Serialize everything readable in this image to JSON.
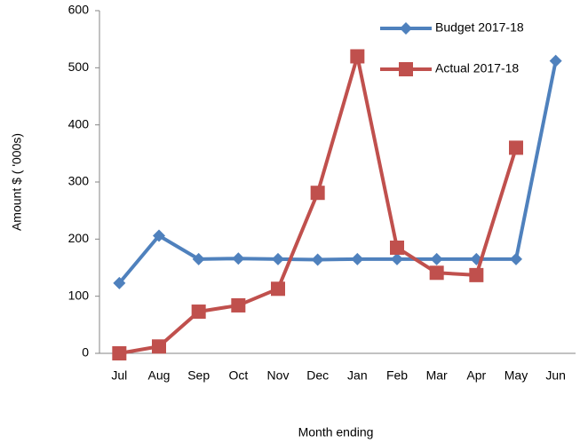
{
  "chart_data": {
    "type": "line",
    "x_label": "Month ending",
    "y_label": "Amount $ ( '000s)",
    "categories": [
      "Jul",
      "Aug",
      "Sep",
      "Oct",
      "Nov",
      "Dec",
      "Jan",
      "Feb",
      "Mar",
      "Apr",
      "May",
      "Jun"
    ],
    "series": [
      {
        "name": "Budget 2017-18",
        "color": "#4f81bd",
        "marker": "diamond",
        "values": [
          123,
          206,
          165,
          166,
          165,
          164,
          165,
          165,
          165,
          165,
          165,
          512
        ]
      },
      {
        "name": "Actual 2017-18",
        "color": "#c0504d",
        "marker": "square",
        "values": [
          0,
          12,
          73,
          84,
          113,
          281,
          520,
          185,
          141,
          137,
          360,
          null
        ]
      }
    ],
    "ylim": [
      0,
      600
    ],
    "yticks": [
      0,
      100,
      200,
      300,
      400,
      500,
      600
    ],
    "grid": false,
    "legend": "top-right"
  }
}
